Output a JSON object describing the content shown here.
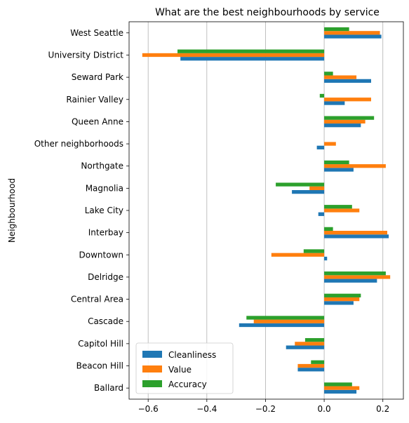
{
  "chart_data": {
    "type": "bar",
    "orientation": "horizontal",
    "title": "What are the best neighbourhoods by service",
    "ylabel": "Neighbourhood",
    "xlabel": "",
    "xlim": [
      -0.665,
      0.27
    ],
    "x_ticks": [
      -0.6,
      -0.4,
      -0.2,
      0.0,
      0.2
    ],
    "x_tick_labels": [
      "−0.6",
      "−0.4",
      "−0.2",
      "0.0",
      "0.2"
    ],
    "grid": "vertical",
    "legend_position": "bottom-left",
    "categories": [
      "Ballard",
      "Beacon Hill",
      "Capitol Hill",
      "Cascade",
      "Central Area",
      "Delridge",
      "Downtown",
      "Interbay",
      "Lake City",
      "Magnolia",
      "Northgate",
      "Other neighborhoods",
      "Queen Anne",
      "Rainier Valley",
      "Seward Park",
      "University District",
      "West Seattle"
    ],
    "series": [
      {
        "name": "Cleanliness",
        "color": "#1f77b4",
        "values": [
          0.11,
          -0.09,
          -0.13,
          -0.29,
          0.1,
          0.18,
          0.01,
          0.22,
          -0.02,
          -0.11,
          0.1,
          -0.025,
          0.125,
          0.07,
          0.16,
          -0.49,
          0.195
        ]
      },
      {
        "name": "Value",
        "color": "#ff7f0e",
        "values": [
          0.12,
          -0.09,
          -0.1,
          -0.24,
          0.12,
          0.225,
          -0.18,
          0.215,
          0.12,
          -0.05,
          0.21,
          0.04,
          0.14,
          0.16,
          0.11,
          -0.62,
          0.19
        ]
      },
      {
        "name": "Accuracy",
        "color": "#2ca02c",
        "values": [
          0.095,
          -0.045,
          -0.065,
          -0.265,
          0.125,
          0.21,
          -0.07,
          0.03,
          0.095,
          -0.165,
          0.085,
          0.0,
          0.17,
          -0.015,
          0.03,
          -0.5,
          0.085
        ]
      }
    ]
  }
}
